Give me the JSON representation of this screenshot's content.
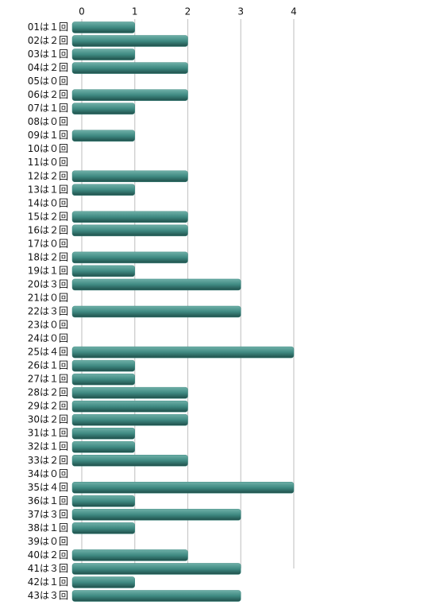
{
  "chart_data": {
    "type": "bar",
    "orientation": "horizontal",
    "categories": [
      "01は１回",
      "02は２回",
      "03は１回",
      "04は２回",
      "05は０回",
      "06は２回",
      "07は１回",
      "08は０回",
      "09は１回",
      "10は０回",
      "11は０回",
      "12は２回",
      "13は１回",
      "14は０回",
      "15は２回",
      "16は２回",
      "17は０回",
      "18は２回",
      "19は１回",
      "20は３回",
      "21は０回",
      "22は３回",
      "23は０回",
      "24は０回",
      "25は４回",
      "26は１回",
      "27は１回",
      "28は２回",
      "29は２回",
      "30は２回",
      "31は１回",
      "32は１回",
      "33は２回",
      "34は０回",
      "35は４回",
      "36は１回",
      "37は３回",
      "38は１回",
      "39は０回",
      "40は２回",
      "41は３回",
      "42は１回",
      "43は３回"
    ],
    "values": [
      1,
      2,
      1,
      2,
      0,
      2,
      1,
      0,
      1,
      0,
      0,
      2,
      1,
      0,
      2,
      2,
      0,
      2,
      1,
      3,
      0,
      3,
      0,
      0,
      4,
      1,
      1,
      2,
      2,
      2,
      1,
      1,
      2,
      0,
      4,
      1,
      3,
      1,
      0,
      2,
      3,
      1,
      3
    ],
    "color": "#3f8a82",
    "xlim": [
      0,
      4
    ],
    "xticks": [
      0,
      1,
      2,
      3,
      4
    ],
    "grid": true
  }
}
